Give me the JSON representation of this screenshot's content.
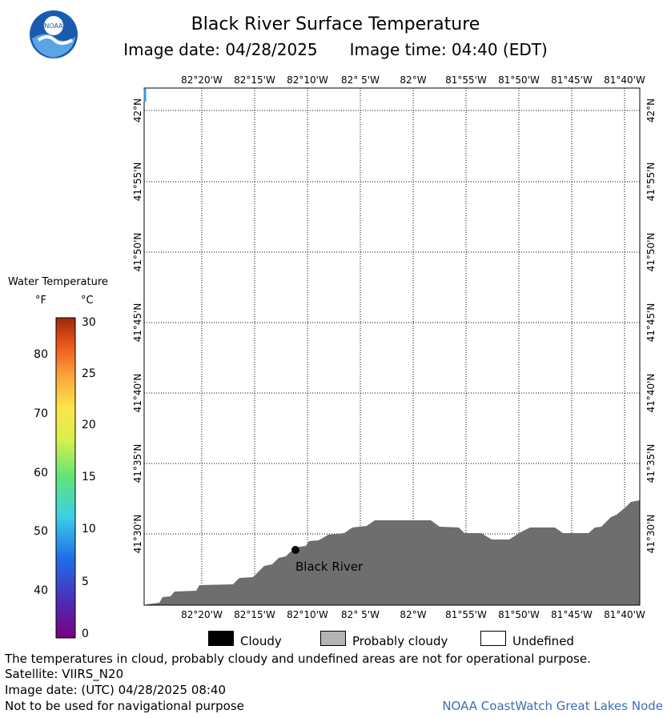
{
  "header": {
    "title": "Black River Surface Temperature",
    "image_date": "Image date: 04/28/2025",
    "image_time": "Image time: 04:40 (EDT)",
    "logo_text": "NOAA"
  },
  "map": {
    "lon_labels": [
      "82°20'W",
      "82°15'W",
      "82°10'W",
      "82° 5'W",
      "82°W",
      "81°55'W",
      "81°50'W",
      "81°45'W",
      "81°40'W"
    ],
    "lat_labels": [
      "42°N",
      "41°55'N",
      "41°50'N",
      "41°45'N",
      "41°40'N",
      "41°35'N",
      "41°30'N"
    ],
    "station": {
      "name": "Black River"
    },
    "colors": {
      "land": "#6e6e6e",
      "water": "#ffffff",
      "grid": "#000000"
    }
  },
  "legend": {
    "title": "Water Temperature",
    "unit_f": "°F",
    "unit_c": "°C",
    "f_ticks": [
      "80",
      "70",
      "60",
      "50",
      "40"
    ],
    "c_ticks": [
      "30",
      "25",
      "20",
      "15",
      "10",
      "5",
      "0"
    ]
  },
  "key": {
    "cloudy": "Cloudy",
    "probably_cloudy": "Probably cloudy",
    "undefined": "Undefined",
    "colors": {
      "cloudy": "#000000",
      "probably_cloudy": "#b4b4b4",
      "undefined": "#ffffff"
    }
  },
  "footer": {
    "disclaimer": "The temperatures in cloud, probably cloudy and undefined areas are not for operational purpose.",
    "satellite": "Satellite: VIIRS_N20",
    "utc_date": "Image date: (UTC) 04/28/2025  08:40",
    "nav_warning": "Not to be used for navigational purpose",
    "credit": "NOAA CoastWatch Great Lakes Node"
  }
}
